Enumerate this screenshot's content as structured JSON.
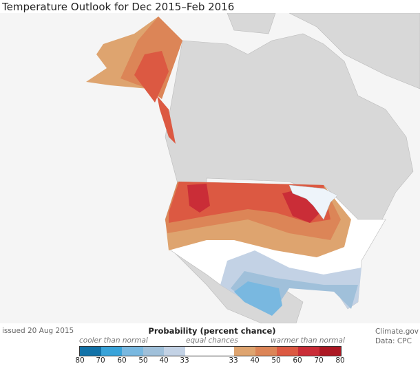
{
  "title": "Temperature Outlook for Dec 2015–Feb 2016",
  "issued": "issued 20 Aug 2015",
  "credit": {
    "source": "Climate.gov",
    "data": "Data: CPC"
  },
  "legend": {
    "title": "Probability (percent chance)",
    "cooler": "cooler than normal",
    "equal": "equal chances",
    "warmer": "warmer than normal",
    "cool_colors": [
      "#1172a8",
      "#39a3d9",
      "#79b8e0",
      "#a0c0da",
      "#c3d2e5"
    ],
    "equal_color": "#ffffff",
    "warm_colors": [
      "#dea46f",
      "#dc8557",
      "#dc5942",
      "#ca2d37",
      "#ac1823"
    ],
    "ticks": [
      "80",
      "70",
      "60",
      "50",
      "40",
      "33",
      "33",
      "40",
      "50",
      "60",
      "70",
      "80"
    ]
  },
  "map_colors": {
    "ocean": "#f5f5f5",
    "land": "#d8d8d8",
    "us_base": "#ffffff"
  }
}
